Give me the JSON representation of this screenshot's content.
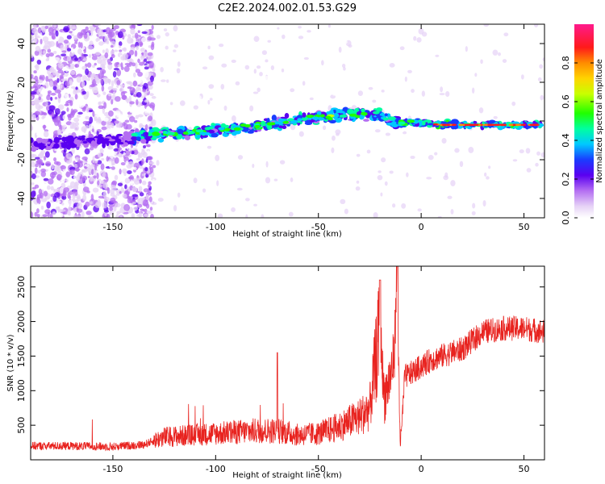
{
  "figure": {
    "title": "C2E2.2024.002.01.53.G29"
  },
  "chart_data": [
    {
      "type": "heatmap",
      "title": "C2E2.2024.002.01.53.G29",
      "xlabel": "Height of straight line (km)",
      "ylabel": "Frequency (Hz)",
      "xlim": [
        -190,
        60
      ],
      "ylim": [
        -50,
        50
      ],
      "xticks": [
        -150,
        -100,
        -50,
        0,
        50
      ],
      "yticks": [
        -40,
        -20,
        0,
        20,
        40
      ],
      "grid": false,
      "colorbar": {
        "label": "Normalized spectral amplitude",
        "range": [
          0,
          1
        ],
        "ticks": [
          0.0,
          0.2,
          0.4,
          0.6,
          0.8
        ],
        "colormap": "rainbow (white-lavender-purple-blue-cyan-green-yellow-orange-red-magenta)"
      },
      "ridge": {
        "description": "Frequency ridge (peak spectral amplitude) along height",
        "x": [
          -190,
          -170,
          -150,
          -130,
          -110,
          -90,
          -70,
          -50,
          -40,
          -30,
          -20,
          -15,
          -10,
          0,
          10,
          30,
          58
        ],
        "y": [
          -12,
          -11,
          -10,
          -7,
          -6,
          -4,
          -1,
          2,
          3,
          3,
          4,
          0,
          -1,
          -1,
          -2,
          -2,
          -2
        ]
      }
    },
    {
      "type": "line",
      "xlabel": "Height of straight line (km)",
      "ylabel": "SNR (10 * v/v)",
      "xlim": [
        -190,
        60
      ],
      "ylim": [
        0,
        2800
      ],
      "xticks": [
        -150,
        -100,
        -50,
        0,
        50
      ],
      "yticks": [
        500,
        1000,
        1500,
        2000,
        2500
      ],
      "grid": false,
      "series": [
        {
          "color": "#e8231f",
          "x": [
            -190,
            -170,
            -150,
            -135,
            -125,
            -110,
            -100,
            -90,
            -80,
            -70,
            -60,
            -50,
            -40,
            -30,
            -25,
            -22,
            -20,
            -18,
            -15,
            -13,
            -12,
            -10,
            -8,
            -5,
            0,
            5,
            10,
            20,
            30,
            40,
            50,
            60
          ],
          "y": [
            200,
            200,
            190,
            220,
            330,
            360,
            380,
            400,
            420,
            420,
            360,
            380,
            480,
            620,
            750,
            1450,
            1900,
            900,
            1200,
            1550,
            2650,
            200,
            1200,
            1250,
            1350,
            1450,
            1500,
            1600,
            1850,
            1900,
            1900,
            1850
          ]
        }
      ]
    }
  ]
}
